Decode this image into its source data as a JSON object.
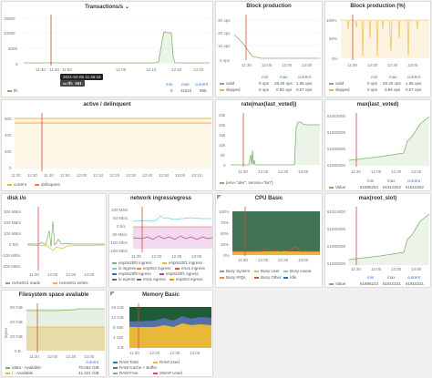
{
  "colors": {
    "green": "#7eb26d",
    "yellow": "#eab839",
    "orange": "#ef843c",
    "red": "#e24d42",
    "blue": "#1f78c1",
    "purple": "#ba43a9",
    "cyan": "#6ed0e0",
    "redline": "#d44a3a",
    "grid": "#ececec"
  },
  "transactions": {
    "title": "Transactions/s",
    "yticks": [
      "15000",
      "10000",
      "5000",
      "0"
    ],
    "xticks": [
      "11:30",
      "11:40",
      "11:50",
      "12:00",
      "12:10",
      "12:20",
      "13:10"
    ],
    "tooltip_time": "2021-02-05 11:36:15",
    "tooltip_series": "tfc",
    "tooltip_value": "161",
    "legend_headers": [
      "min",
      "max",
      "current"
    ],
    "legend_name": "tfc",
    "legend_values": [
      "0",
      "11023",
      "895"
    ]
  },
  "block_production": {
    "title": "Block production",
    "yticks": [
      "30 ops",
      "20 ops",
      "10 ops",
      "0 ops"
    ],
    "xticks": [
      "11:30",
      "12:00",
      "12:30",
      "13:00"
    ],
    "legend_headers": [
      "min",
      "max",
      "current"
    ],
    "rows": [
      {
        "name": "valid",
        "min": "0 ops",
        "max": "28.40 ops",
        "current": "1.95 ops"
      },
      {
        "name": "skipped",
        "min": "0 ops",
        "max": "0.94 ops",
        "current": "0.07 ops"
      }
    ]
  },
  "block_production_pct": {
    "title": "Block production (%)",
    "yticks": [
      "100%",
      "50%",
      "0%"
    ],
    "xticks": [
      "11:30",
      "12:00",
      "12:30",
      "13:00"
    ],
    "legend_headers": [
      "min",
      "max",
      "current"
    ],
    "rows": [
      {
        "name": "valid",
        "min": "0 ops",
        "max": "28.40 ops",
        "current": "1.95 ops"
      },
      {
        "name": "skipped",
        "min": "0 ops",
        "max": "0.94 ops",
        "current": "0.07 ops"
      }
    ]
  },
  "active_delinquent": {
    "title": "active / delinquent",
    "yticks": [
      "600",
      "400",
      "200",
      "0"
    ],
    "xticks": [
      "11:20",
      "11:30",
      "11:40",
      "11:50",
      "12:00",
      "12:10",
      "12:20",
      "12:30",
      "12:40",
      "12:50",
      "13:00",
      "13:10"
    ],
    "legend": [
      "current",
      "delinquent"
    ]
  },
  "rate_max_last_voted": {
    "title": "rate(max(last_voted))",
    "yticks": [
      "25k",
      "20k",
      "15k",
      "10k",
      "5k",
      "0"
    ],
    "xticks": [
      "11:30",
      "12:00",
      "12:30",
      "13:00"
    ],
    "legend": [
      "{env=\"dev\", service=\"kin\"}"
    ]
  },
  "max_last_voted": {
    "title": "max(last_voted)",
    "yticks": [
      "61910000",
      "61900000",
      "61890000",
      "61880000"
    ],
    "xticks": [
      "11:30",
      "12:00",
      "12:30",
      "13:00"
    ],
    "legend_headers": [
      "min",
      "max",
      "current"
    ],
    "legend_name": "Value",
    "legend_values": [
      "61896254",
      "61910262",
      "61910262"
    ]
  },
  "disk_io": {
    "title": "disk i/o",
    "yticks": [
      "300 MB/s",
      "200 MB/s",
      "100 MB/s",
      "0 B/s",
      "-100 MB/s",
      "-200 MB/s"
    ],
    "xticks": [
      "11:30",
      "12:00",
      "12:30",
      "13:00"
    ],
    "legend": [
      "nvme0n1 reads",
      "nvme0n1 writes"
    ]
  },
  "network": {
    "title": "network ingress/egress",
    "yticks": [
      "100 Mb/s",
      "50 Mb/s",
      "0 b/s",
      "-50 Mb/s",
      "-100 Mb/s",
      "-150 Mb/s"
    ],
    "xticks": [
      "11:30",
      "12:00",
      "12:30",
      "13:00"
    ],
    "legend": [
      "enp0s20f0 ingress",
      "enp0s20f1 ingress",
      "lo ingress",
      "enp0s3 ingress",
      "eno1 ingress",
      "enp0s20f0 egress",
      "enp0s20f1 egress",
      "lo egress",
      "eno1 egress",
      "enp0s3 egress"
    ]
  },
  "cpu": {
    "title": "CPU Basic",
    "yticks": [
      "100%",
      "75%",
      "50%",
      "25%",
      "0%"
    ],
    "xticks": [
      "11:30",
      "12:00",
      "12:30",
      "13:00"
    ],
    "legend": [
      "Busy System",
      "Busy User",
      "Busy Iowait",
      "Busy IRQs",
      "Busy Other",
      "Idle"
    ]
  },
  "max_root_slot": {
    "title": "max(root_slot)",
    "yticks": [
      "61910000",
      "61900000",
      "61890000",
      "61880000"
    ],
    "xticks": [
      "11:30",
      "12:00",
      "12:30",
      "13:00"
    ],
    "legend_headers": [
      "min",
      "max",
      "current"
    ],
    "legend_name": "Value",
    "legend_values": [
      "61896223",
      "61910231",
      "61910231"
    ]
  },
  "filesystem": {
    "title": "Filesystem space available",
    "ylabel": "Bytes",
    "yticks": [
      "60 GiB",
      "40 GiB",
      "20 GiB",
      "0 B"
    ],
    "xticks": [
      "11:30",
      "12:00",
      "12:30",
      "13:00"
    ],
    "legend_headers": [
      "current"
    ],
    "rows": [
      {
        "name": "/data - Available",
        "current": "70.062 GiB"
      },
      {
        "name": "/ - Available",
        "current": "41.321 GiB"
      }
    ]
  },
  "memory": {
    "title": "Memory Basic",
    "yticks": [
      "16 GiB",
      "12 GiB",
      "8 GiB",
      "4 GiB",
      "0 B"
    ],
    "xticks": [
      "11:30",
      "12:00",
      "12:30",
      "13:00"
    ],
    "legend": [
      "RAM Total",
      "RAM Used",
      "RAM Cache + Buffer",
      "RAM Free",
      "SWAP Used"
    ]
  }
}
